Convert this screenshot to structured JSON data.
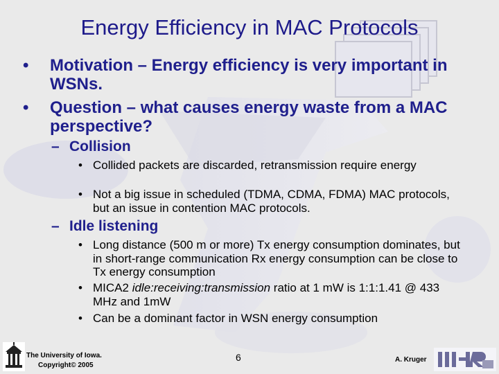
{
  "slide": {
    "title": "Energy Efficiency in MAC Protocols",
    "bullets": [
      {
        "marker": "•",
        "text": "Motivation – Energy efficiency is very important in WSNs."
      },
      {
        "marker": "•",
        "text": "Question – what causes energy waste from a MAC perspective?"
      }
    ],
    "subsections": [
      {
        "marker": "–",
        "heading": "Collision",
        "items": [
          "Collided packets are discarded, retransmission require energy",
          "Not a big issue in scheduled (TDMA, CDMA, FDMA) MAC protocols, but an issue in contention MAC protocols."
        ]
      },
      {
        "marker": "–",
        "heading": "Idle listening",
        "items": [
          "Long distance (500 m or more) Tx energy consumption dominates, but in short-range communication Rx energy consumption can be close to Tx energy consumption",
          {
            "prefix": "MICA2 ",
            "italic": "idle:receiving:transmission",
            "suffix": " ratio at 1 mW is 1:1:1.41 @ 433 MHz and 1mW"
          },
          "Can be a dominant factor in WSN energy consumption"
        ]
      }
    ],
    "sub_marker": "•"
  },
  "footer": {
    "university_line1": "The University of Iowa.",
    "university_line2": "Copyright© 2005",
    "page_number": "6",
    "author": "A. Kruger"
  }
}
